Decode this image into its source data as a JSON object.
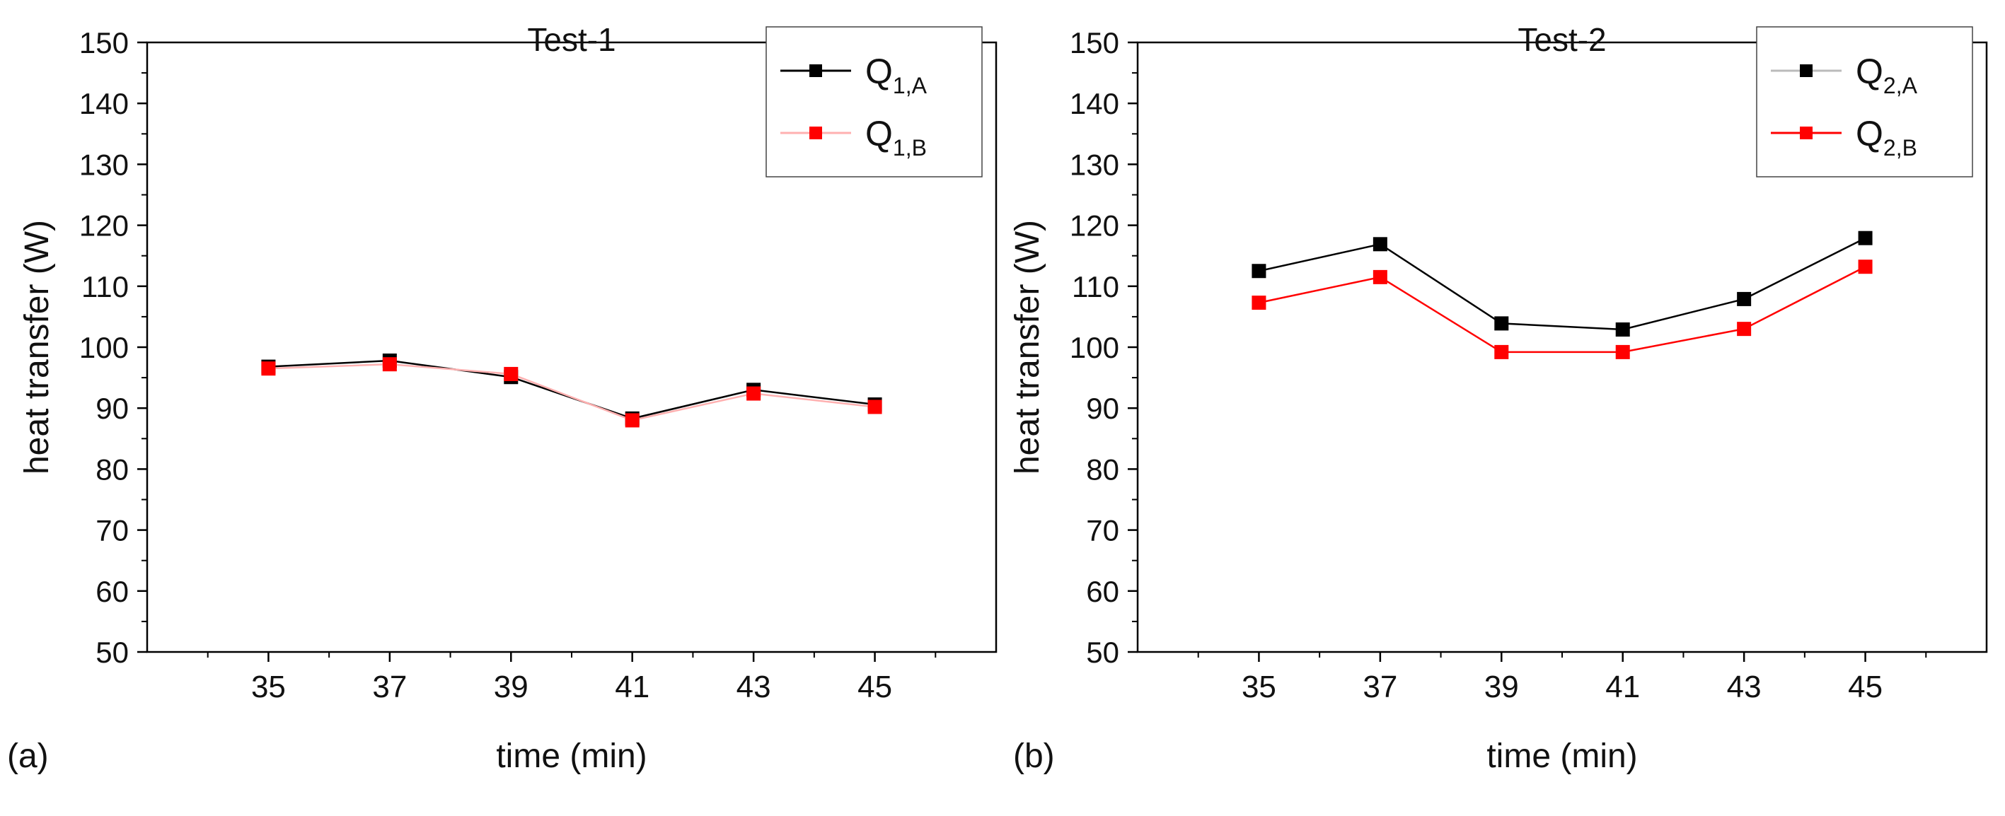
{
  "figure": {
    "panel_a_label": "(a)",
    "panel_b_label": "(b)"
  },
  "chart_data": [
    {
      "type": "line",
      "title": "Test-1",
      "xlabel": "time (min)",
      "ylabel": "heat transfer (W)",
      "x": [
        35,
        37,
        39,
        41,
        43,
        45
      ],
      "xlim": [
        33,
        47
      ],
      "ylim": [
        50,
        150
      ],
      "yticks": [
        50,
        60,
        70,
        80,
        90,
        100,
        110,
        120,
        130,
        140,
        150
      ],
      "xticks": [
        35,
        37,
        39,
        41,
        43,
        45
      ],
      "legend_position": "top-right",
      "series": [
        {
          "name": "Q",
          "subscript": "1,A",
          "color": "#000000",
          "values": [
            96.8,
            97.8,
            95.1,
            88.3,
            93.0,
            90.6
          ]
        },
        {
          "name": "Q",
          "subscript": "1,B",
          "color": "#ff0000",
          "values": [
            96.5,
            97.2,
            95.6,
            88.0,
            92.4,
            90.2
          ]
        }
      ]
    },
    {
      "type": "line",
      "title": "Test-2",
      "xlabel": "time (min)",
      "ylabel": "heat transfer (W)",
      "x": [
        35,
        37,
        39,
        41,
        43,
        45
      ],
      "xlim": [
        33,
        47
      ],
      "ylim": [
        50,
        150
      ],
      "yticks": [
        50,
        60,
        70,
        80,
        90,
        100,
        110,
        120,
        130,
        140,
        150
      ],
      "xticks": [
        35,
        37,
        39,
        41,
        43,
        45
      ],
      "legend_position": "top-right",
      "series": [
        {
          "name": "Q",
          "subscript": "2,A",
          "color": "#000000",
          "values": [
            112.5,
            116.9,
            103.9,
            102.9,
            107.9,
            117.9
          ]
        },
        {
          "name": "Q",
          "subscript": "2,B",
          "color": "#ff0000",
          "values": [
            107.3,
            111.5,
            99.2,
            99.2,
            103.0,
            113.2
          ]
        }
      ]
    }
  ]
}
